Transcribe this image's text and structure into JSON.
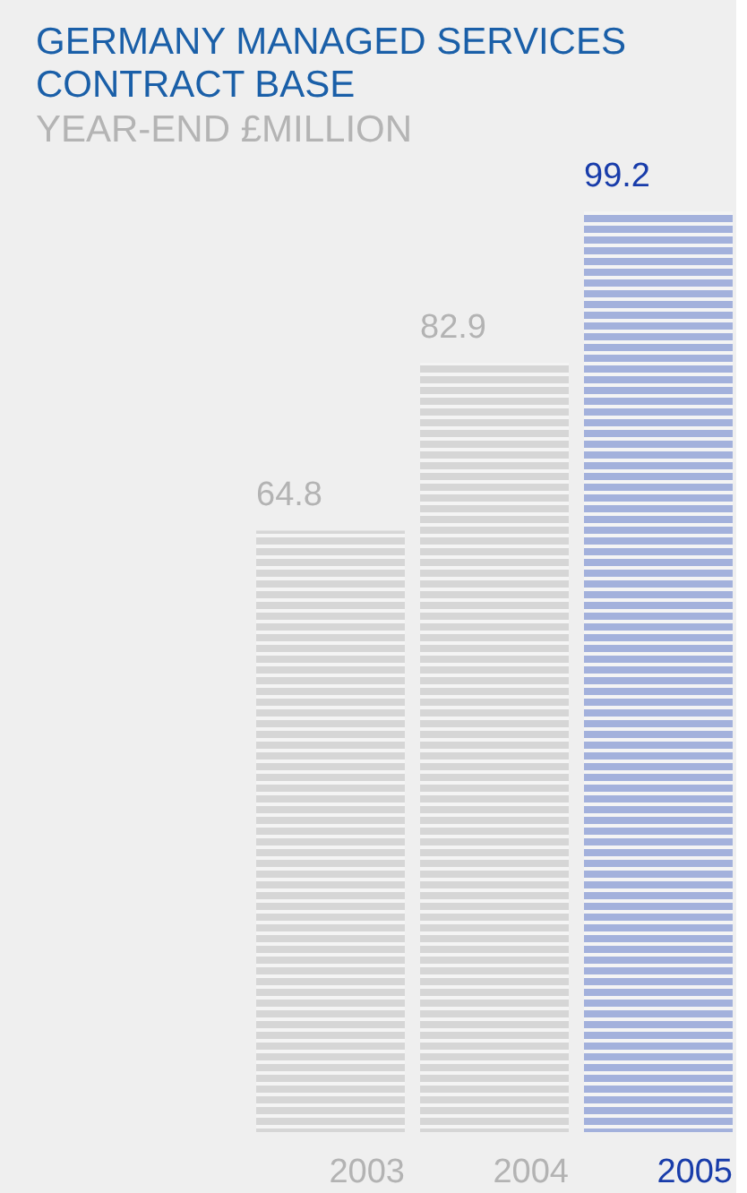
{
  "chart_data": {
    "type": "bar",
    "title": "GERMANY MANAGED SERVICES CONTRACT BASE",
    "subtitle": "YEAR-END £MILLION",
    "categories": [
      "2003",
      "2004",
      "2005"
    ],
    "values": [
      64.8,
      82.9,
      99.2
    ],
    "colors": [
      "#d6d6d6",
      "#d6d6d6",
      "#a3b1dc"
    ],
    "data_labels": true
  }
}
